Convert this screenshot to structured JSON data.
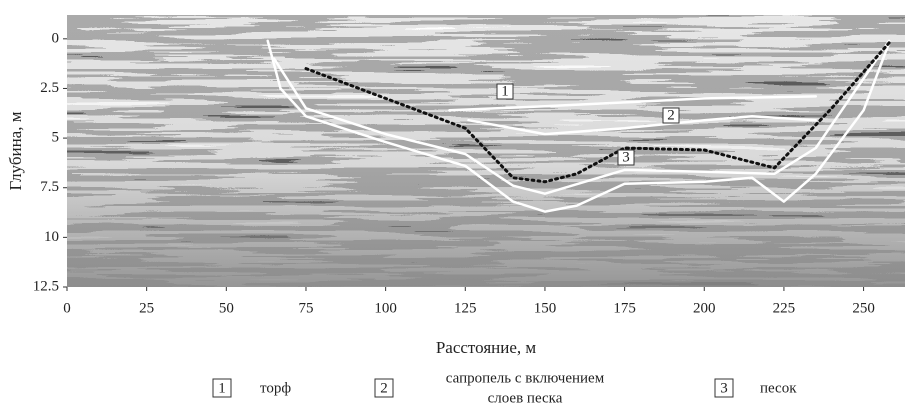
{
  "chart_data": {
    "type": "line",
    "x_label": "Расстояние, м",
    "y_label": "Глубина, м",
    "xlim": [
      0,
      263
    ],
    "ylim": [
      -1.2,
      12.5
    ],
    "y_inverted": true,
    "xticks": [
      0,
      25,
      50,
      75,
      100,
      125,
      150,
      175,
      200,
      225,
      250
    ],
    "yticks": [
      0,
      2.5,
      5,
      7.5,
      10,
      12.5
    ],
    "series": [
      {
        "color": "#ffffff",
        "dashed": false,
        "x": [
          120,
          150,
          175,
          200,
          235
        ],
        "values": [
          3.6,
          3.4,
          3.2,
          3.0,
          2.9
        ]
      },
      {
        "color": "#ffffff",
        "dashed": false,
        "x": [
          126,
          150,
          175,
          200,
          215,
          235
        ],
        "values": [
          4.1,
          4.8,
          4.5,
          4.1,
          3.9,
          4.1
        ]
      },
      {
        "color": "#ffffff",
        "dashed": false,
        "x": [
          63,
          67,
          75,
          100,
          125,
          140,
          150,
          160,
          175,
          200,
          215,
          225,
          235,
          250,
          258
        ],
        "values": [
          0.1,
          2.5,
          3.9,
          5.2,
          6.4,
          8.2,
          8.7,
          8.4,
          7.3,
          7.2,
          7.0,
          8.2,
          6.8,
          3.6,
          0.2
        ]
      },
      {
        "color": "#ffffff",
        "dashed": false,
        "x": [
          65,
          75,
          100,
          125,
          140,
          150,
          175,
          200,
          222,
          235,
          250,
          258
        ],
        "values": [
          1.0,
          3.5,
          4.8,
          5.8,
          7.4,
          7.8,
          6.6,
          6.7,
          6.8,
          5.5,
          2.0,
          0.1
        ]
      },
      {
        "color": "#111111",
        "dashed": true,
        "x": [
          75,
          100,
          125,
          140,
          150,
          160,
          175,
          200,
          222,
          240,
          258
        ],
        "values": [
          1.5,
          3.0,
          4.5,
          7.0,
          7.2,
          6.8,
          5.5,
          5.6,
          6.5,
          3.5,
          0.2
        ]
      }
    ],
    "legend": [
      {
        "key": "1",
        "label": [
          "торф"
        ]
      },
      {
        "key": "2",
        "label": [
          "сапропель с включением",
          "слоев песка"
        ]
      },
      {
        "key": "3",
        "label": [
          "песок"
        ]
      }
    ]
  }
}
